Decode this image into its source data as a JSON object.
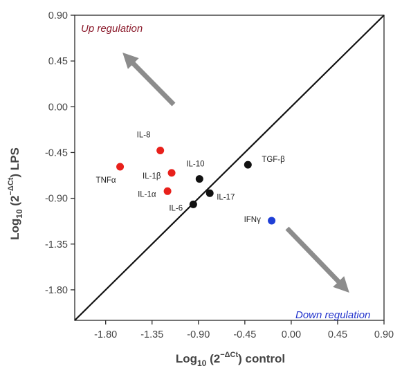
{
  "chart_data": {
    "type": "scatter",
    "xlabel": {
      "base": "Log",
      "sub": "10",
      "open": " (2",
      "sup": "−ΔCt",
      "close": ") control"
    },
    "ylabel": {
      "base": "Log",
      "sub": "10",
      "open": " (2",
      "sup": "−ΔCt",
      "close": ") LPS"
    },
    "xlim": [
      -2.1,
      0.9
    ],
    "ylim": [
      -2.1,
      0.9
    ],
    "xticks": [
      -1.8,
      -1.35,
      -0.9,
      -0.45,
      0.0,
      0.45,
      0.9
    ],
    "yticks": [
      0.9,
      0.45,
      0.0,
      -0.45,
      -0.9,
      -1.35,
      -1.8
    ],
    "xtick_labels": [
      "-1.80",
      "-1.35",
      "-0.90",
      "-0.45",
      "0.00",
      "0.45",
      "0.90"
    ],
    "ytick_labels": [
      "0.90",
      "0.45",
      "0.00",
      "-0.45",
      "-0.90",
      "-1.35",
      "-1.80"
    ],
    "diagonal_line": true,
    "points": [
      {
        "label": "IL-8",
        "x": -1.27,
        "y": -0.43,
        "color": "#e8201b"
      },
      {
        "label": "TNFα",
        "x": -1.66,
        "y": -0.59,
        "color": "#e8201b"
      },
      {
        "label": "IL-1β",
        "x": -1.16,
        "y": -0.65,
        "color": "#e8201b"
      },
      {
        "label": "IL-1α",
        "x": -1.2,
        "y": -0.83,
        "color": "#e8201b"
      },
      {
        "label": "IL-10",
        "x": -0.89,
        "y": -0.71,
        "color": "#111111"
      },
      {
        "label": "IL-6",
        "x": -0.95,
        "y": -0.96,
        "color": "#111111"
      },
      {
        "label": "IL-17",
        "x": -0.79,
        "y": -0.85,
        "color": "#111111"
      },
      {
        "label": "TGF-β",
        "x": -0.42,
        "y": -0.57,
        "color": "#111111"
      },
      {
        "label": "IFNγ",
        "x": -0.19,
        "y": -1.12,
        "color": "#1f3fd6"
      }
    ],
    "annotations": [
      {
        "text": "Up regulation",
        "color": "#8b1a2b"
      },
      {
        "text": "Down regulation",
        "color": "#2233cc"
      }
    ],
    "arrow_color": "#8c8c8c"
  }
}
